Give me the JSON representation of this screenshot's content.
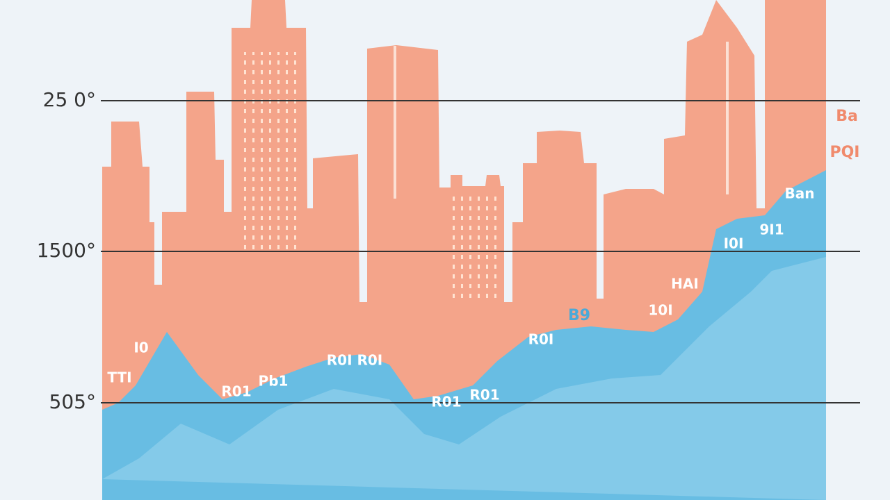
{
  "axis_labels": [
    "25 0°",
    "1500°",
    "505°"
  ],
  "annotations": [
    "Ba",
    "PQI",
    "Ban",
    "9I1",
    "I0I",
    "HAI",
    "10I",
    "B9",
    "R0I",
    "I0",
    "R0I R0I",
    "R01",
    "Pb1",
    "R01",
    "R01",
    "TTI"
  ]
}
